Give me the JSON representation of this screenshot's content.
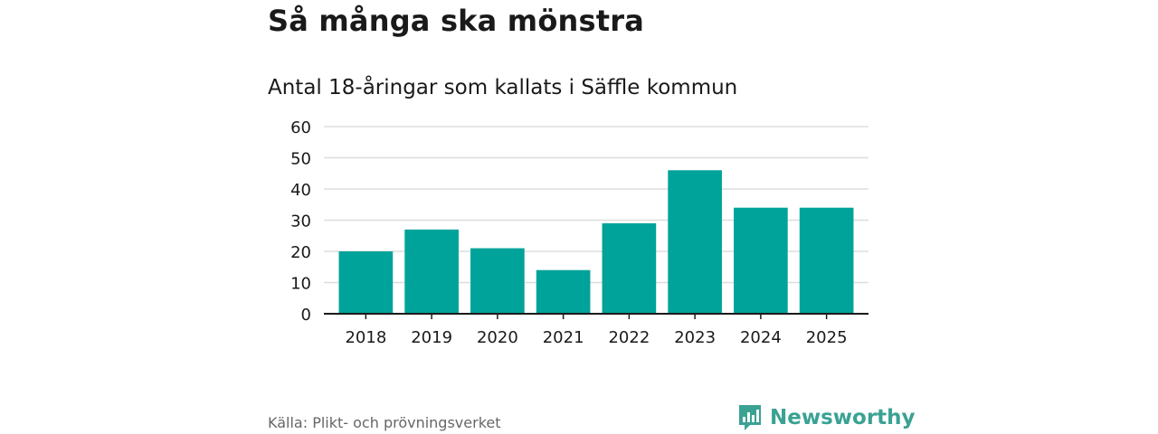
{
  "title": "Så många ska mönstra",
  "subtitle": "Antal 18-åringar som kallats i Säffle kommun",
  "source": "Källa: Plikt- och prövningsverket",
  "brand": {
    "name": "Newsworthy",
    "icon": "newsworthy-logo-icon"
  },
  "colors": {
    "bar": "#00a39a",
    "brand": "#3aa293",
    "grid": "#dddddd",
    "axis": "#1a1a1a"
  },
  "chart_data": {
    "type": "bar",
    "title": "Så många ska mönstra",
    "subtitle": "Antal 18-åringar som kallats i Säffle kommun",
    "xlabel": "",
    "ylabel": "",
    "categories": [
      "2018",
      "2019",
      "2020",
      "2021",
      "2022",
      "2023",
      "2024",
      "2025"
    ],
    "values": [
      20,
      27,
      21,
      14,
      29,
      46,
      34,
      34
    ],
    "ylim": [
      0,
      60
    ],
    "yticks": [
      "0",
      "10",
      "20",
      "30",
      "40",
      "50",
      "60"
    ],
    "grid": true,
    "legend": "none"
  }
}
